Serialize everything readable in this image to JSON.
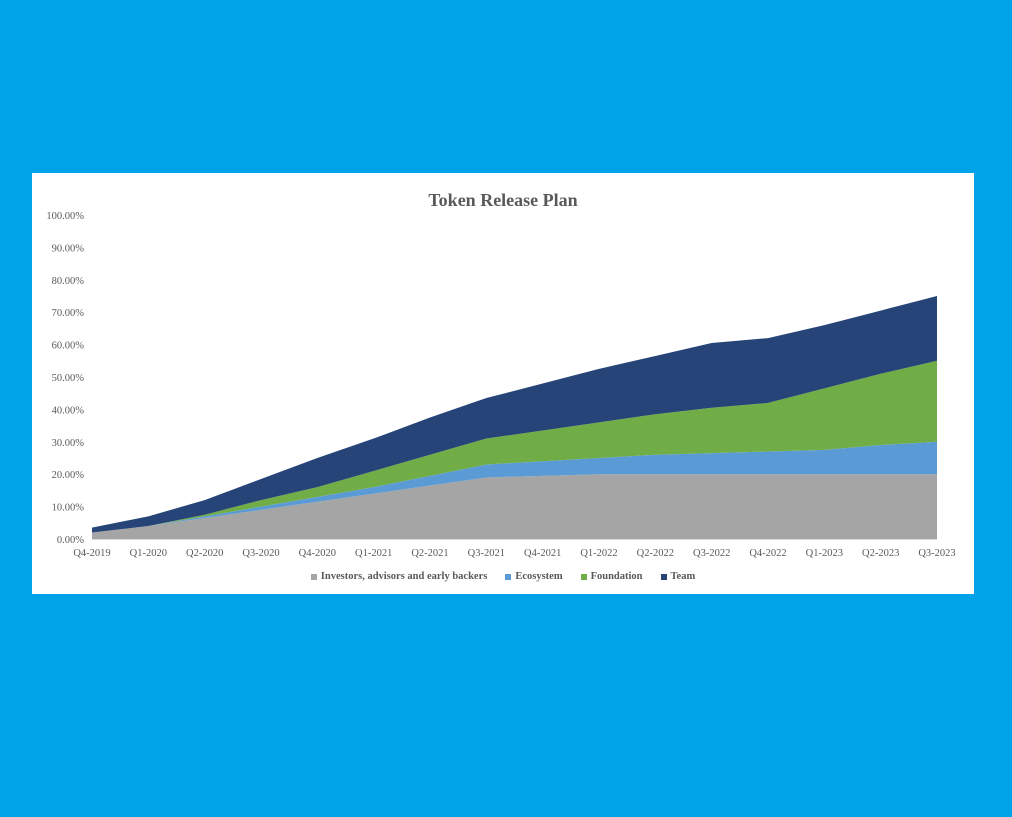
{
  "chart_data": {
    "type": "area",
    "stacked": true,
    "title": "Token Release Plan",
    "xlabel": "",
    "ylabel": "",
    "ylim": [
      0,
      100
    ],
    "y_ticks": [
      "0.00%",
      "10.00%",
      "20.00%",
      "30.00%",
      "40.00%",
      "50.00%",
      "60.00%",
      "70.00%",
      "80.00%",
      "90.00%",
      "100.00%"
    ],
    "categories": [
      "Q4-2019",
      "Q1-2020",
      "Q2-2020",
      "Q3-2020",
      "Q4-2020",
      "Q1-2021",
      "Q2-2021",
      "Q3-2021",
      "Q4-2021",
      "Q1-2022",
      "Q2-2022",
      "Q3-2022",
      "Q4-2022",
      "Q1-2023",
      "Q2-2023",
      "Q3-2023"
    ],
    "series": [
      {
        "name": "Investors, advisors and early backers",
        "color": "#a5a5a5",
        "values": [
          2,
          4,
          6.5,
          9,
          11.5,
          14,
          16.5,
          19,
          19.5,
          20,
          20,
          20,
          20,
          20,
          20,
          20
        ]
      },
      {
        "name": "Ecosystem",
        "color": "#5b9bd5",
        "values": [
          0,
          0,
          0.5,
          1,
          1.5,
          2,
          3,
          4,
          4.5,
          5,
          6,
          6.5,
          7,
          7.5,
          9,
          10
        ]
      },
      {
        "name": "Foundation",
        "color": "#70ad47",
        "values": [
          0,
          0,
          0.5,
          2,
          3,
          5,
          6.5,
          8,
          9.5,
          11,
          12.5,
          14,
          15,
          19,
          22,
          25
        ]
      },
      {
        "name": "Team",
        "color": "#264478",
        "values": [
          1.5,
          3,
          4.5,
          6.5,
          9,
          10,
          11.5,
          12.5,
          14.5,
          16.5,
          18,
          20,
          20,
          19.5,
          19.5,
          20
        ]
      }
    ],
    "grid": false,
    "legend_position": "bottom"
  },
  "background_color": "#00a2e8"
}
